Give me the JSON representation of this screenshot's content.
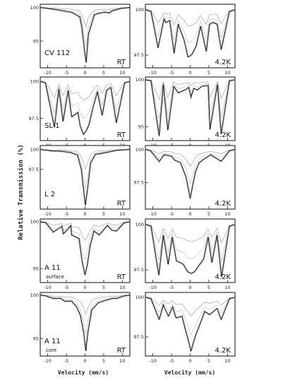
{
  "figure": {
    "ylabel": "Relative Transmission (%)",
    "xlabel": "Velocity (mm/s)"
  },
  "chart_data": [
    {
      "type": "line",
      "sample": "CV 112",
      "temperature": "RT",
      "xlim": [
        -12,
        12
      ],
      "ylim": [
        91,
        100.5
      ],
      "xticks": [
        -10,
        -5,
        0,
        5,
        10
      ],
      "yticks": [
        100,
        95
      ],
      "grid": false,
      "x": [
        -12,
        -10.2,
        -6.8,
        -4.9,
        -3.6,
        -1.4,
        -0.9,
        0,
        0.3,
        0.9,
        2.5,
        3.3,
        5.2,
        6.5,
        7.2,
        9.8,
        12
      ],
      "y": [
        100,
        99.9,
        99.6,
        99.4,
        99.3,
        98.6,
        97.2,
        93.0,
        91.8,
        96.0,
        98.9,
        99.1,
        99.3,
        99.2,
        99.5,
        99.9,
        100
      ]
    },
    {
      "type": "line",
      "sample": "CV 112",
      "temperature": "4.2K",
      "xlim": [
        -12,
        12
      ],
      "ylim": [
        96.8,
        100.3
      ],
      "xticks": [
        -10,
        -5,
        0,
        5,
        10
      ],
      "yticks": [
        100,
        97.5
      ],
      "grid": false,
      "x": [
        -12,
        -10.5,
        -8.6,
        -7.0,
        -6.5,
        -5.5,
        -4.3,
        -3.2,
        -1.6,
        -0.6,
        0.3,
        0.9,
        1.6,
        2.8,
        4.3,
        5.2,
        6.1,
        7.2,
        8.3,
        10.5,
        12
      ],
      "y": [
        100,
        99.9,
        97.9,
        99.5,
        99.3,
        99.4,
        97.6,
        99.2,
        98.3,
        97.4,
        97.5,
        97.7,
        98.0,
        99.1,
        97.7,
        99.2,
        99.3,
        99.2,
        97.8,
        99.9,
        100
      ]
    },
    {
      "type": "line",
      "sample": "SL 1",
      "temperature": "RT",
      "xlim": [
        -12,
        12
      ],
      "ylim": [
        96,
        100.3
      ],
      "xticks": [
        -10,
        -5,
        0,
        5,
        10
      ],
      "yticks": [
        100,
        97.5
      ],
      "grid": false,
      "x": [
        -12,
        -10.6,
        -8.2,
        -7.0,
        -5.9,
        -4.5,
        -3.6,
        -1.9,
        -1.3,
        -0.4,
        0.4,
        1.1,
        1.9,
        3.3,
        4.6,
        5.8,
        6.9,
        8.4,
        10.6,
        12
      ],
      "y": [
        100,
        99.9,
        96.9,
        99.5,
        97.3,
        99.4,
        97.6,
        97.9,
        97.0,
        96.4,
        96.7,
        97.1,
        98.0,
        99.3,
        97.7,
        99.4,
        99.6,
        97.2,
        99.9,
        100
      ]
    },
    {
      "type": "line",
      "sample": "SL 1",
      "temperature": "4.2K",
      "xlim": [
        -12,
        12
      ],
      "ylim": [
        93.5,
        100.3
      ],
      "xticks": [
        -10,
        -5,
        0,
        5,
        10
      ],
      "yticks": [
        100,
        95
      ],
      "grid": false,
      "x": [
        -12,
        -10.5,
        -8.3,
        -7.2,
        -6.0,
        -4.4,
        -3.2,
        -1.0,
        -0.4,
        0.2,
        1.0,
        1.9,
        3.1,
        4.8,
        5.3,
        7.3,
        8.3,
        10.5,
        12
      ],
      "y": [
        100,
        99.9,
        94.0,
        99.5,
        94.6,
        99.3,
        98.6,
        99.0,
        99.2,
        98.2,
        99.1,
        98.9,
        99.3,
        99.4,
        94.7,
        99.5,
        94.2,
        99.9,
        100
      ]
    },
    {
      "type": "line",
      "sample": "L 2",
      "temperature": "RT",
      "xlim": [
        -12,
        12
      ],
      "ylim": [
        92.5,
        100.5
      ],
      "xticks": [
        -10,
        -5,
        0,
        5,
        10
      ],
      "yticks": [
        100,
        97.5
      ],
      "grid": false,
      "x": [
        -12,
        -10.2,
        -8.6,
        -7.2,
        -5.2,
        -3.8,
        -2.0,
        -1.0,
        -0.4,
        0.1,
        0.8,
        1.5,
        2.8,
        4.3,
        6.5,
        8.5,
        12
      ],
      "y": [
        100,
        99.9,
        99.8,
        99.8,
        99.7,
        99.6,
        99.3,
        97.5,
        95.0,
        93.0,
        95.5,
        98.3,
        99.4,
        99.5,
        99.7,
        99.9,
        100
      ]
    },
    {
      "type": "line",
      "sample": "L 2",
      "temperature": "4.2K",
      "xlim": [
        -12,
        12
      ],
      "ylim": [
        95.5,
        100.3
      ],
      "xticks": [
        -10,
        -5,
        0,
        5,
        10
      ],
      "yticks": [
        100,
        97.5
      ],
      "grid": false,
      "x": [
        -12,
        -10.6,
        -8.3,
        -7.0,
        -5.0,
        -4.2,
        -2.6,
        -1.2,
        -0.6,
        0,
        0.6,
        1.4,
        2.4,
        3.8,
        5.5,
        8.3,
        10.5,
        12
      ],
      "y": [
        100,
        99.9,
        99.1,
        99.6,
        99.5,
        99.2,
        99.0,
        98.0,
        97.2,
        96.3,
        97.2,
        98.3,
        99.0,
        99.3,
        99.6,
        99.1,
        99.9,
        100
      ]
    },
    {
      "type": "line",
      "sample": "A 11",
      "sublabel": "surface",
      "temperature": "RT",
      "xlim": [
        -12,
        12
      ],
      "ylim": [
        93.5,
        100.3
      ],
      "xticks": [
        -10,
        -5,
        0,
        5,
        10
      ],
      "yticks": [
        100,
        95
      ],
      "grid": false,
      "x": [
        -12,
        -10.5,
        -8.5,
        -6.2,
        -5.8,
        -3.8,
        -3.6,
        -1.6,
        -0.8,
        0,
        0.6,
        1.4,
        2.4,
        3.8,
        6.0,
        7.2,
        8.4,
        10.5,
        12
      ],
      "y": [
        100,
        99.9,
        98.9,
        99.5,
        98.7,
        99.6,
        98.6,
        98.2,
        95.8,
        94.3,
        95.4,
        97.5,
        99.0,
        98.6,
        99.6,
        99.1,
        99.0,
        99.9,
        100
      ]
    },
    {
      "type": "line",
      "sample": "A 11",
      "sublabel": "surface",
      "temperature": "4.2K",
      "xlim": [
        -12,
        12
      ],
      "ylim": [
        96.8,
        100.3
      ],
      "xticks": [
        -10,
        -5,
        0,
        5,
        10
      ],
      "yticks": [
        100,
        97.5
      ],
      "grid": false,
      "x": [
        -12,
        -10.5,
        -8.4,
        -7.2,
        -5.9,
        -4.8,
        -3.7,
        -1.8,
        -0.7,
        0.3,
        1.2,
        2.2,
        3.6,
        4.8,
        5.8,
        7.2,
        8.4,
        10.5,
        12
      ],
      "y": [
        100,
        99.9,
        97.2,
        99.4,
        97.8,
        99.3,
        98.0,
        97.8,
        97.4,
        97.3,
        97.4,
        97.7,
        98.1,
        99.3,
        97.9,
        99.4,
        97.1,
        99.9,
        100
      ]
    },
    {
      "type": "line",
      "sample": "A 11",
      "sublabel": "core",
      "temperature": "RT",
      "xlim": [
        -12,
        12
      ],
      "ylim": [
        93.0,
        100.3
      ],
      "xticks": [
        -10,
        -5,
        0,
        5,
        10
      ],
      "yticks": [
        100,
        95
      ],
      "grid": false,
      "x": [
        -12,
        -10.5,
        -8.5,
        -6.5,
        -5.5,
        -3.6,
        -2.2,
        -1.2,
        -0.3,
        0.2,
        0.8,
        1.8,
        3.5,
        5.5,
        7.2,
        8.4,
        10.5,
        12
      ],
      "y": [
        100,
        99.9,
        99.6,
        99.6,
        99.3,
        99.3,
        98.6,
        97.6,
        95.5,
        93.6,
        95.8,
        98.3,
        99.1,
        99.4,
        99.6,
        99.6,
        99.9,
        100
      ]
    },
    {
      "type": "line",
      "sample": "A 11",
      "sublabel": "core",
      "temperature": "4.2K",
      "xlim": [
        -12,
        12
      ],
      "ylim": [
        96.3,
        100.3
      ],
      "xticks": [
        -10,
        -5,
        0,
        5,
        10
      ],
      "yticks": [
        100,
        97.5
      ],
      "grid": false,
      "x": [
        -12,
        -10.5,
        -8.3,
        -7.2,
        -5.8,
        -4.7,
        -3.8,
        -2.2,
        -1.2,
        -0.4,
        0.2,
        0.8,
        1.6,
        2.6,
        3.9,
        5.2,
        7.2,
        8.3,
        10.5,
        12
      ],
      "y": [
        100,
        99.9,
        98.6,
        99.5,
        98.8,
        99.4,
        98.7,
        98.8,
        97.9,
        97.2,
        96.6,
        97.1,
        97.7,
        98.3,
        99.1,
        98.9,
        99.3,
        98.6,
        99.9,
        100
      ]
    }
  ]
}
